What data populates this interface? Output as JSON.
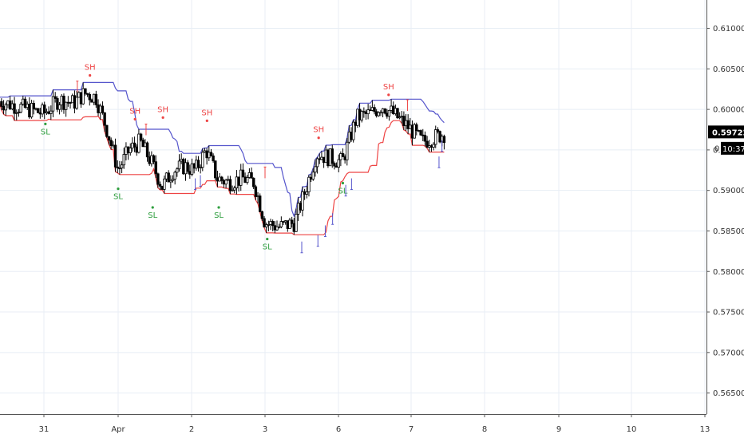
{
  "chart_data": {
    "type": "candlestick",
    "instrument_note": "",
    "price_axis": {
      "ticks": [
        "0.61000",
        "0.60500",
        "0.60000",
        "0.59500",
        "0.59000",
        "0.58500",
        "0.58000",
        "0.57500",
        "0.57000",
        "0.56500"
      ],
      "tick_values": [
        0.61,
        0.605,
        0.6,
        0.595,
        0.59,
        0.585,
        0.58,
        0.575,
        0.57,
        0.565
      ],
      "range": [
        0.5625,
        0.6135
      ]
    },
    "time_axis": {
      "labels": [
        "31",
        "Apr",
        "2",
        "3",
        "6",
        "7",
        "8",
        "9",
        "10",
        "13"
      ]
    },
    "current_price": {
      "label": "0.59722",
      "value": 0.59722,
      "countdown": "10:37",
      "partial_label": "0"
    },
    "colors": {
      "candle": "#000000",
      "upper_band": "#5555cc",
      "lower_band": "#ee4444",
      "swing_high": "#ee4444",
      "swing_low": "#2e9e3e",
      "grid": "#e8eef5",
      "axis_text": "#333333"
    },
    "markers": {
      "swing_high_label": "SH",
      "swing_low_label": "SL",
      "swing_highs": [
        {
          "t": 0.62,
          "price": 0.6039
        },
        {
          "t": 1.23,
          "price": 0.5985
        },
        {
          "t": 1.61,
          "price": 0.5987
        },
        {
          "t": 2.21,
          "price": 0.5983
        },
        {
          "t": 3.73,
          "price": 0.5962
        },
        {
          "t": 4.69,
          "price": 0.6015
        }
      ],
      "swing_lows": [
        {
          "t": 0.02,
          "price": 0.5985
        },
        {
          "t": 1.0,
          "price": 0.5905
        },
        {
          "t": 1.47,
          "price": 0.5882
        },
        {
          "t": 2.37,
          "price": 0.5882
        },
        {
          "t": 3.03,
          "price": 0.5843
        },
        {
          "t": 4.06,
          "price": 0.5912
        }
      ]
    }
  }
}
